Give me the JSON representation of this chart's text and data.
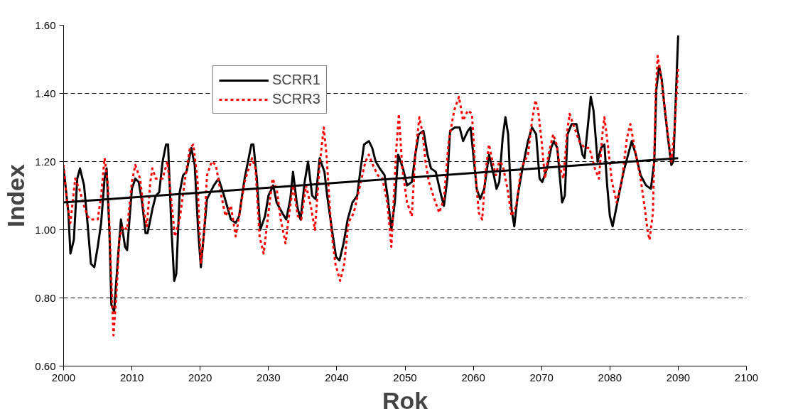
{
  "chart_data": {
    "type": "line",
    "xlabel": "Rok",
    "ylabel": "Index",
    "xlim": [
      2000,
      2100
    ],
    "xticks": [
      2000,
      2010,
      2020,
      2030,
      2040,
      2050,
      2060,
      2070,
      2080,
      2090,
      2100
    ],
    "ylim": [
      0.6,
      1.6
    ],
    "yticks": [
      {
        "value": 0.6,
        "label": "0.60"
      },
      {
        "value": 0.8,
        "label": "0.80"
      },
      {
        "value": 1.0,
        "label": "1.00"
      },
      {
        "value": 1.2,
        "label": "1.20"
      },
      {
        "value": 1.4,
        "label": "1.40"
      },
      {
        "value": 1.6,
        "label": "1.60"
      }
    ],
    "grid": "y",
    "legend": "top left",
    "marker": "none",
    "series": [
      {
        "name": "SCRR1",
        "color": "#000000",
        "line_style": "solid",
        "x": [
          2000,
          2000.7,
          2001,
          2001.5,
          2002,
          2002.4,
          2003,
          2003.5,
          2004,
          2004.5,
          2005,
          2005.5,
          2006,
          2006.3,
          2006.7,
          2007,
          2007.4,
          2008,
          2008.4,
          2009,
          2009.3,
          2010,
          2010.5,
          2011,
          2011.5,
          2012,
          2012.3,
          2013,
          2013.5,
          2014,
          2014.5,
          2015,
          2015.3,
          2015.8,
          2016.2,
          2016.5,
          2017,
          2017.5,
          2018,
          2018.7,
          2019.2,
          2019.7,
          2020.1,
          2020.6,
          2021,
          2022,
          2022.7,
          2023.5,
          2024.5,
          2025.2,
          2025.7,
          2026.5,
          2027.5,
          2027.8,
          2028.3,
          2028.8,
          2029.5,
          2030,
          2030.7,
          2031.2,
          2032,
          2032.6,
          2033.2,
          2033.6,
          2034.2,
          2034.7,
          2035.3,
          2035.8,
          2036.4,
          2036.9,
          2037.5,
          2038.2,
          2038.6,
          2039.3,
          2039.9,
          2040.4,
          2041,
          2041.6,
          2042.3,
          2043,
          2043.5,
          2044,
          2044.7,
          2045.2,
          2045.7,
          2046.3,
          2047,
          2047.5,
          2048,
          2048.5,
          2049,
          2049.7,
          2050.3,
          2051,
          2051.5,
          2052,
          2052.7,
          2053.3,
          2053.8,
          2054.5,
          2055.3,
          2055.7,
          2056.2,
          2056.6,
          2057.3,
          2058,
          2058.5,
          2059.2,
          2059.6,
          2060.2,
          2060.5,
          2061,
          2061.6,
          2062.3,
          2063,
          2063.4,
          2063.8,
          2064.3,
          2064.7,
          2065.1,
          2065.6,
          2066,
          2066.5,
          2067.2,
          2068,
          2068.6,
          2069.2,
          2069.7,
          2070.1,
          2070.8,
          2071.4,
          2071.8,
          2072.3,
          2073,
          2073.4,
          2073.8,
          2074.4,
          2075.1,
          2075.6,
          2076,
          2076.3,
          2076.8,
          2077.2,
          2077.6,
          2078.2,
          2078.7,
          2079.2,
          2079.6,
          2080,
          2080.4,
          2081.2,
          2082,
          2082.8,
          2083.2,
          2083.8,
          2084.5,
          2085.3,
          2086,
          2086.5,
          2086.8,
          2087.2,
          2087.6,
          2088,
          2088.5,
          2089,
          2089.3,
          2090
        ],
        "values": [
          1.18,
          1.05,
          0.93,
          0.97,
          1.15,
          1.18,
          1.13,
          1.02,
          0.9,
          0.89,
          0.95,
          1.02,
          1.15,
          1.18,
          1.0,
          0.78,
          0.76,
          0.93,
          1.03,
          0.95,
          0.94,
          1.12,
          1.15,
          1.14,
          1.08,
          0.99,
          0.99,
          1.06,
          1.1,
          1.11,
          1.2,
          1.25,
          1.25,
          1.0,
          0.85,
          0.87,
          1.11,
          1.16,
          1.17,
          1.24,
          1.19,
          1.0,
          0.89,
          1.0,
          1.09,
          1.13,
          1.15,
          1.1,
          1.03,
          1.02,
          1.04,
          1.15,
          1.25,
          1.25,
          1.15,
          1.0,
          1.04,
          1.1,
          1.13,
          1.08,
          1.05,
          1.03,
          1.09,
          1.17,
          1.07,
          1.03,
          1.14,
          1.2,
          1.1,
          1.09,
          1.21,
          1.17,
          1.1,
          1.0,
          0.92,
          0.91,
          0.96,
          1.03,
          1.08,
          1.1,
          1.18,
          1.25,
          1.26,
          1.24,
          1.2,
          1.18,
          1.16,
          1.09,
          1.0,
          1.08,
          1.22,
          1.18,
          1.13,
          1.14,
          1.22,
          1.28,
          1.29,
          1.22,
          1.18,
          1.17,
          1.1,
          1.07,
          1.15,
          1.29,
          1.3,
          1.3,
          1.26,
          1.29,
          1.3,
          1.18,
          1.12,
          1.09,
          1.12,
          1.22,
          1.16,
          1.12,
          1.14,
          1.27,
          1.33,
          1.28,
          1.06,
          1.01,
          1.1,
          1.18,
          1.26,
          1.3,
          1.28,
          1.15,
          1.14,
          1.18,
          1.24,
          1.26,
          1.24,
          1.08,
          1.1,
          1.28,
          1.31,
          1.31,
          1.26,
          1.22,
          1.21,
          1.31,
          1.39,
          1.35,
          1.2,
          1.24,
          1.25,
          1.13,
          1.04,
          1.01,
          1.09,
          1.17,
          1.23,
          1.26,
          1.22,
          1.16,
          1.13,
          1.12,
          1.2,
          1.41,
          1.48,
          1.44,
          1.36,
          1.27,
          1.19,
          1.2,
          1.57
        ]
      },
      {
        "name": "SCRR3",
        "color": "#ff0000",
        "line_style": "dashed",
        "x": [
          2000,
          2000.5,
          2001,
          2001.7,
          2002.3,
          2003,
          2003.5,
          2004,
          2005,
          2005.5,
          2006,
          2006.5,
          2007,
          2007.3,
          2007.7,
          2008.2,
          2008.7,
          2009.3,
          2010,
          2010.5,
          2011.2,
          2011.7,
          2012.2,
          2012.7,
          2013,
          2013.5,
          2014.5,
          2015.2,
          2015.7,
          2016.3,
          2017,
          2017.8,
          2018.5,
          2019,
          2019.6,
          2020.1,
          2020.6,
          2021,
          2021.7,
          2022.3,
          2023,
          2023.7,
          2024.5,
          2025.2,
          2025.8,
          2026.5,
          2027.6,
          2028.1,
          2028.7,
          2029.3,
          2030,
          2030.6,
          2031.2,
          2031.8,
          2032.5,
          2033,
          2033.6,
          2034.3,
          2034.8,
          2035.5,
          2036.2,
          2036.8,
          2037.5,
          2038.1,
          2038.5,
          2039.2,
          2039.8,
          2040.5,
          2041.1,
          2041.7,
          2042.5,
          2043.3,
          2044.2,
          2044.7,
          2045.3,
          2046,
          2046.7,
          2047.4,
          2048,
          2048.7,
          2049.1,
          2049.6,
          2050.3,
          2051,
          2051.5,
          2052.1,
          2052.6,
          2053,
          2053.5,
          2054.3,
          2055,
          2055.7,
          2056.4,
          2057.2,
          2057.9,
          2058.5,
          2059.2,
          2059.8,
          2060.3,
          2060.8,
          2061.3,
          2061.8,
          2062.3,
          2062.8,
          2063.3,
          2063.8,
          2064.3,
          2065,
          2065.6,
          2066.3,
          2067,
          2068,
          2068.6,
          2069.1,
          2069.5,
          2070,
          2070.5,
          2071,
          2071.7,
          2072.2,
          2072.7,
          2073.2,
          2073.7,
          2074.1,
          2074.8,
          2075.5,
          2076.3,
          2077,
          2077.8,
          2078.4,
          2078.9,
          2079.2,
          2079.7,
          2080.3,
          2081,
          2081.8,
          2082.5,
          2083,
          2083.8,
          2084.5,
          2085.2,
          2085.5,
          2085.8,
          2086.3,
          2086.7,
          2087,
          2087.4,
          2087.9,
          2088.5,
          2089,
          2089.5,
          2090
        ],
        "values": [
          1.19,
          1.08,
          1.02,
          1.15,
          1.12,
          1.07,
          1.04,
          1.03,
          1.03,
          1.1,
          1.21,
          1.13,
          0.85,
          0.69,
          0.8,
          0.98,
          1.01,
          1.0,
          1.14,
          1.19,
          1.15,
          1.06,
          1.01,
          1.14,
          1.18,
          1.15,
          1.15,
          1.2,
          1.1,
          0.98,
          1.03,
          1.15,
          1.24,
          1.25,
          1.15,
          0.9,
          1.0,
          1.16,
          1.2,
          1.19,
          1.11,
          1.04,
          1.07,
          0.98,
          1.05,
          1.14,
          1.21,
          1.18,
          0.98,
          0.93,
          1.05,
          1.15,
          1.12,
          1.03,
          0.96,
          1.04,
          1.13,
          1.04,
          1.03,
          1.13,
          1.07,
          1.0,
          1.19,
          1.3,
          1.22,
          1.0,
          0.9,
          0.85,
          0.9,
          1.02,
          1.05,
          1.12,
          1.2,
          1.22,
          1.19,
          1.16,
          1.15,
          1.08,
          0.95,
          1.23,
          1.34,
          1.18,
          1.08,
          1.04,
          1.22,
          1.33,
          1.28,
          1.2,
          1.14,
          1.09,
          1.05,
          1.09,
          1.26,
          1.35,
          1.39,
          1.32,
          1.35,
          1.34,
          1.17,
          1.05,
          1.03,
          1.17,
          1.25,
          1.2,
          1.16,
          1.2,
          1.19,
          1.12,
          1.04,
          1.07,
          1.18,
          1.22,
          1.32,
          1.38,
          1.35,
          1.26,
          1.15,
          1.22,
          1.28,
          1.25,
          1.18,
          1.15,
          1.28,
          1.34,
          1.3,
          1.26,
          1.24,
          1.24,
          1.18,
          1.15,
          1.28,
          1.33,
          1.25,
          1.14,
          1.08,
          1.15,
          1.27,
          1.31,
          1.22,
          1.15,
          1.05,
          1.0,
          0.97,
          1.05,
          1.39,
          1.51,
          1.46,
          1.38,
          1.28,
          1.2,
          1.3,
          1.48
        ]
      },
      {
        "color": "#000000",
        "line_style": "solid",
        "x": [
          2000,
          2090
        ],
        "values": [
          1.08,
          1.21
        ]
      }
    ]
  }
}
